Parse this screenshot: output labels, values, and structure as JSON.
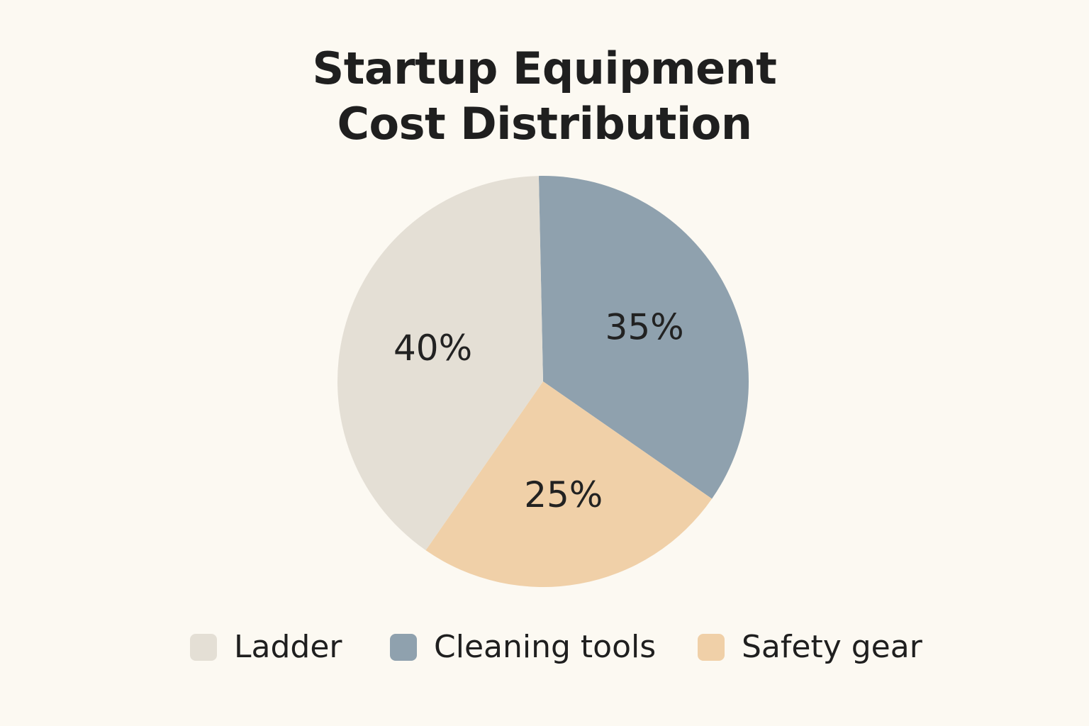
{
  "chart_data": {
    "type": "pie",
    "title_lines": [
      "Startup Equipment",
      "Cost Distribution"
    ],
    "slices": [
      {
        "name": "Ladder",
        "value": 40,
        "label": "40%",
        "color": "#e4dfd5"
      },
      {
        "name": "Cleaning tools",
        "value": 35,
        "label": "35%",
        "color": "#8fa1ae"
      },
      {
        "name": "Safety gear",
        "value": 25,
        "label": "25%",
        "color": "#f0d0a8"
      }
    ],
    "legend_position": "bottom"
  }
}
